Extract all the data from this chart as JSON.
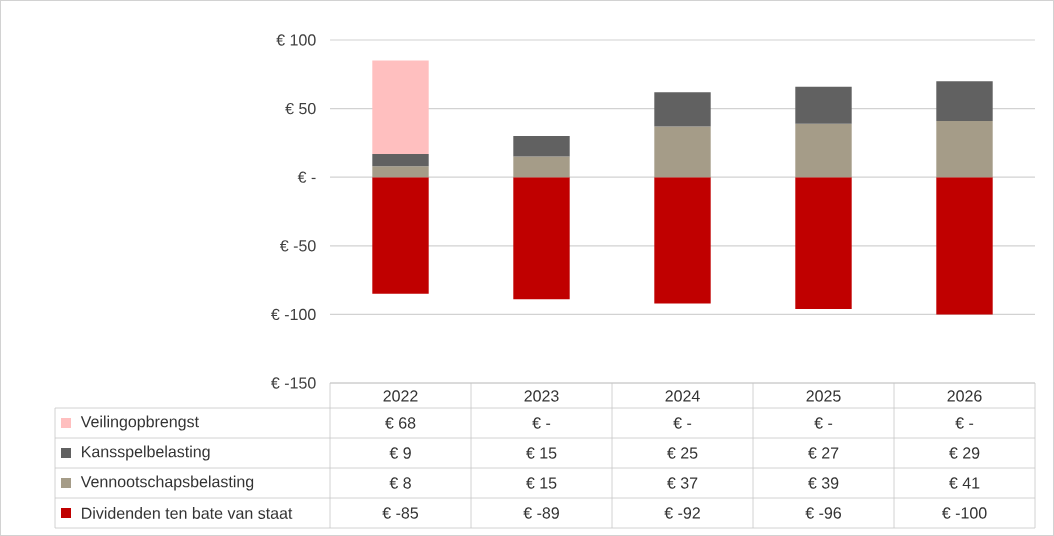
{
  "chart_data": {
    "type": "bar",
    "stacked": true,
    "grid": "y",
    "legend": "bottom",
    "categories": [
      "2022",
      "2023",
      "2024",
      "2025",
      "2026"
    ],
    "ylim": [
      -150,
      100
    ],
    "yticks": [
      {
        "value": -150,
        "label": "€ -150"
      },
      {
        "value": -100,
        "label": "€ -100"
      },
      {
        "value": -50,
        "label": "€ -50"
      },
      {
        "value": 0,
        "label": "€ -"
      },
      {
        "value": 50,
        "label": "€ 50"
      },
      {
        "value": 100,
        "label": "€ 100"
      }
    ],
    "series": [
      {
        "name": "Dividenden ten bate van staat",
        "color": "#c00000",
        "values": [
          -85,
          -89,
          -92,
          -96,
          -100
        ],
        "value_labels": [
          "€ -85",
          "€ -89",
          "€ -92",
          "€ -96",
          "€ -100"
        ]
      },
      {
        "name": "Vennootschapsbelasting",
        "color": "#a59c88",
        "values": [
          8,
          15,
          37,
          39,
          41
        ],
        "value_labels": [
          "€ 8",
          "€ 15",
          "€ 37",
          "€ 39",
          "€ 41"
        ]
      },
      {
        "name": "Kansspelbelasting",
        "color": "#616161",
        "values": [
          9,
          15,
          25,
          27,
          29
        ],
        "value_labels": [
          "€ 9",
          "€ 15",
          "€ 25",
          "€ 27",
          "€ 29"
        ]
      },
      {
        "name": "Veilingopbrengst",
        "color": "#ffbfbf",
        "values": [
          68,
          0,
          0,
          0,
          0
        ],
        "value_labels": [
          "€ 68",
          "€ -",
          "€ -",
          "€ -",
          "€ -"
        ]
      }
    ]
  }
}
